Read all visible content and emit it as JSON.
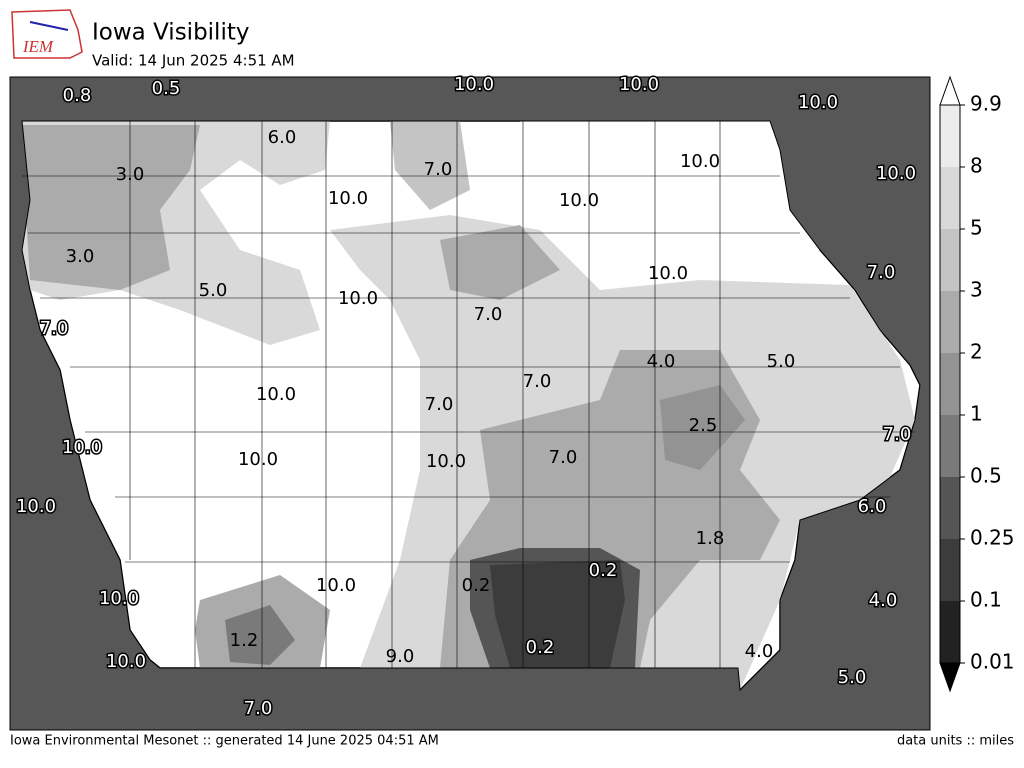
{
  "header": {
    "logo_text": "IEM",
    "title": "Iowa Visibility",
    "subtitle": "Valid: 14 Jun 2025 4:51 AM"
  },
  "stations": [
    "0.8",
    "0.5",
    "10.0",
    "10.0",
    "10.0",
    "6.0",
    "7.0",
    "3.0",
    "10.0",
    "10.0",
    "10.0",
    "10.0",
    "3.0",
    "10.0",
    "7.0",
    "5.0",
    "10.0",
    "7.0",
    "7.0",
    "4.0",
    "5.0",
    "7.0",
    "10.0",
    "7.0",
    "2.5",
    "7.0",
    "10.0",
    "10.0",
    "10.0",
    "7.0",
    "10.0",
    "6.0",
    "1.8",
    "0.2",
    "0.2",
    "10.0",
    "4.0",
    "10.0",
    "1.2",
    "0.2",
    "9.0",
    "4.0",
    "10.0",
    "5.0",
    "7.0"
  ],
  "colorbar": {
    "ticks": [
      9.9,
      8,
      5,
      3,
      2,
      1,
      0.5,
      0.25,
      0.1,
      0.01
    ],
    "colors": [
      "#ececec",
      "#d9d9d9",
      "#c4c4c4",
      "#ababab",
      "#939393",
      "#7a7a7a",
      "#555555",
      "#3c3c3c",
      "#222222"
    ],
    "over_color": "#ffffff",
    "under_color": "#000000"
  },
  "footer": {
    "left": "Iowa Environmental Mesonet :: generated 14 June 2025 04:51 AM",
    "right": "data units :: miles"
  }
}
